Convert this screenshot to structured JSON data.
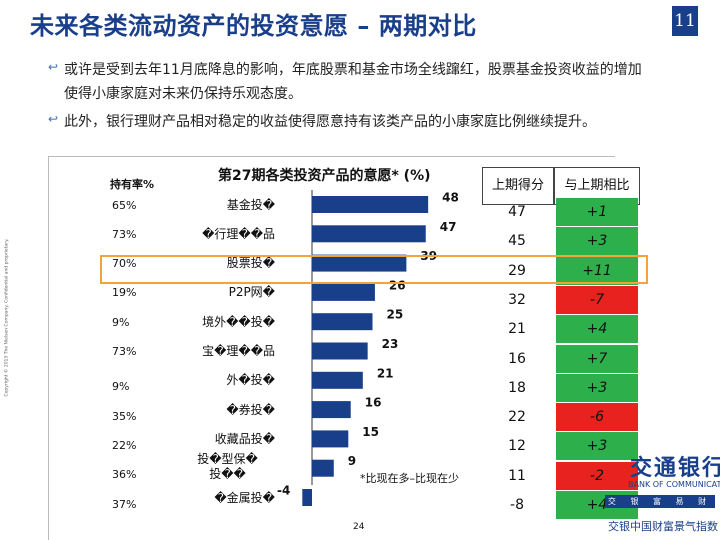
{
  "slide": {
    "title": "未来各类流动资产的投资意愿 – 两期对比",
    "page_badge": "11",
    "page_number": "24",
    "copyright": "Copyright © 2013 The Nielsen Company. Confidential and proprietary."
  },
  "bullets": [
    "或许是受到去年11月底降息的影响，年底股票和基金市场全线蹿红，股票基金投资收益的增加使得小康家庭对未来仍保持乐观态度。",
    "此外，银行理财产品相对稳定的收益使得愿意持有该类产品的小康家庭比例继续提升。"
  ],
  "columns": {
    "holding_rate": "持有率%",
    "last_score": "上期得分",
    "vs_last": "与上期相比"
  },
  "footnote": "*比现在多–比现在少",
  "colors": {
    "bar": "#1a3f8a",
    "positive": "#2db04b",
    "negative": "#e8231f",
    "highlight": "#f0a43a"
  },
  "logo": {
    "name": "交通银行",
    "sub": "BANK OF COMMUNICATIONS",
    "bar": "交 银 富 易 财 银 行",
    "caption": "交银中国财富景气指数"
  },
  "chart_data": {
    "type": "bar",
    "orientation": "horizontal",
    "title": "第27期各类投资产品的意愿* (%)",
    "categories": [
      "基金投�",
      "�行理��品",
      "股票投�",
      "P2P网�",
      "境外��投�",
      "宝�理��品",
      "外�投�",
      "�券投�",
      "收藏品投�",
      "投�型保�\n投��",
      "�金属投�"
    ],
    "values": [
      48,
      47,
      39,
      26,
      25,
      23,
      21,
      16,
      15,
      9,
      -4
    ],
    "holding_rate": [
      "65%",
      "73%",
      "70%",
      "19%",
      "9%",
      "73%",
      "9%",
      "35%",
      "22%",
      "36%",
      "37%"
    ],
    "last_period_score": [
      47,
      45,
      29,
      32,
      21,
      16,
      18,
      22,
      12,
      11,
      -8
    ],
    "change_vs_last": [
      "+1",
      "+3",
      "+11",
      "-7",
      "+4",
      "+7",
      "+3",
      "-6",
      "+3",
      "-2",
      "+4"
    ],
    "highlighted_category": "股票投�",
    "xlim": [
      -4,
      48
    ]
  }
}
